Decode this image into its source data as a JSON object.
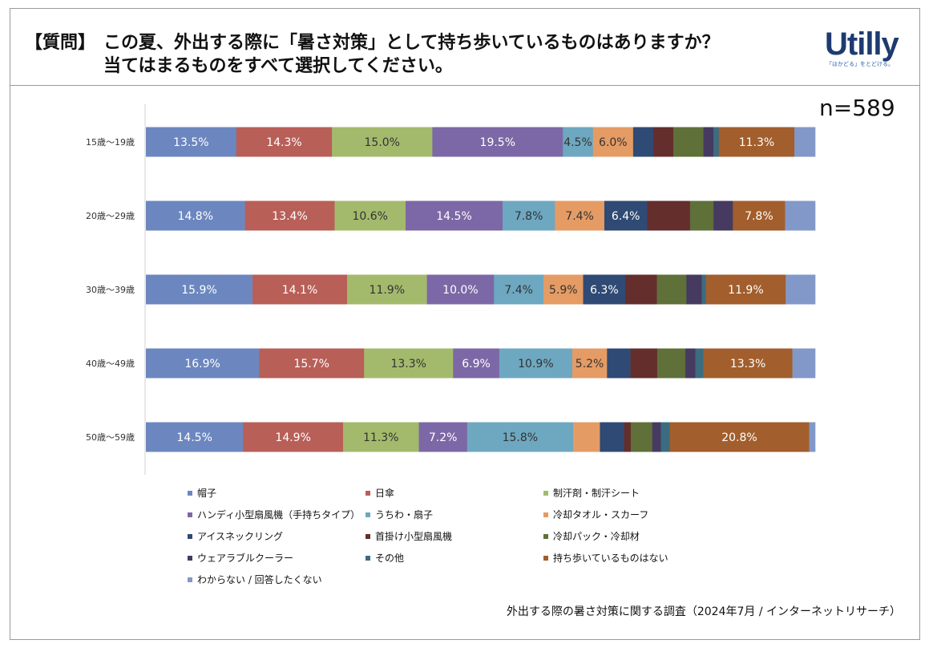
{
  "header": {
    "question_label": "【質問】",
    "question_line1": "この夏、外出する際に「暑さ対策」として持ち歩いているものはありますか？",
    "question_line2": "当てはまるものをすべて選択してください。",
    "logo_text": "Utilly",
    "logo_tagline": "「はかどる」をとどける。"
  },
  "sample_size": "n=589",
  "source_note": "外出する際の暑さ対策に関する調査（2024年7月 / インターネットリサーチ）",
  "chart_data": {
    "type": "bar",
    "orientation": "horizontal-stacked-100",
    "categories": [
      "15歳〜19歳",
      "20歳〜29歳",
      "30歳〜39歳",
      "40歳〜49歳",
      "50歳〜59歳"
    ],
    "series": [
      {
        "name": "帽子",
        "color": "#6c87bf",
        "values": [
          13.5,
          14.8,
          15.9,
          16.9,
          14.5
        ]
      },
      {
        "name": "日傘",
        "color": "#b85f58",
        "values": [
          14.3,
          13.4,
          14.1,
          15.7,
          14.9
        ]
      },
      {
        "name": "制汗剤・制汗シート",
        "color": "#a3ba6c",
        "values": [
          15.0,
          10.6,
          11.9,
          13.3,
          11.3
        ]
      },
      {
        "name": "ハンディ小型扇風機（手持ちタイプ）",
        "color": "#7c68a6",
        "values": [
          19.5,
          14.5,
          10.0,
          6.9,
          7.2
        ]
      },
      {
        "name": "うちわ・扇子",
        "color": "#6ea7c0",
        "values": [
          4.5,
          7.8,
          7.4,
          10.9,
          15.8
        ]
      },
      {
        "name": "冷却タオル・スカーフ",
        "color": "#e59b64",
        "values": [
          6.0,
          7.4,
          5.9,
          5.2,
          4.0
        ]
      },
      {
        "name": "アイスネックリング",
        "color": "#2f4a74",
        "values": [
          3.0,
          6.4,
          6.3,
          3.5,
          3.6
        ]
      },
      {
        "name": "首掛け小型扇風機",
        "color": "#642e2d",
        "values": [
          3.0,
          6.4,
          4.7,
          4.0,
          1.0
        ]
      },
      {
        "name": "冷却パック・冷却材",
        "color": "#5f7039",
        "values": [
          4.5,
          3.5,
          4.4,
          4.2,
          3.2
        ]
      },
      {
        "name": "ウェアラブルクーラー",
        "color": "#463a60",
        "values": [
          1.5,
          2.9,
          2.3,
          1.5,
          1.3
        ]
      },
      {
        "name": "その他",
        "color": "#3b6c80",
        "values": [
          0.8,
          0.0,
          0.6,
          1.2,
          1.3
        ]
      },
      {
        "name": "持ち歩いているものはない",
        "color": "#a25e2c",
        "values": [
          11.3,
          7.8,
          11.9,
          13.3,
          20.8
        ]
      },
      {
        "name": "わからない / 回答したくない",
        "color": "#8298c8",
        "values": [
          3.1,
          4.5,
          4.4,
          3.4,
          0.9
        ]
      }
    ],
    "data_labels": [
      [
        "13.5%",
        "14.3%",
        "15.0%",
        "19.5%",
        "4.5%",
        "6.0%",
        "",
        "",
        "",
        "",
        "",
        "11.3%",
        ""
      ],
      [
        "14.8%",
        "13.4%",
        "10.6%",
        "14.5%",
        "7.8%",
        "7.4%",
        "6.4%",
        "",
        "",
        "",
        "",
        "7.8%",
        ""
      ],
      [
        "15.9%",
        "14.1%",
        "11.9%",
        "10.0%",
        "7.4%",
        "5.9%",
        "6.3%",
        "",
        "",
        "",
        "",
        "11.9%",
        ""
      ],
      [
        "16.9%",
        "15.7%",
        "13.3%",
        "6.9%",
        "10.9%",
        "5.2%",
        "",
        "",
        "",
        "",
        "",
        "13.3%",
        ""
      ],
      [
        "14.5%",
        "14.9%",
        "11.3%",
        "7.2%",
        "15.8%",
        "",
        "",
        "",
        "",
        "",
        "",
        "20.8%",
        ""
      ]
    ],
    "xlim": [
      0,
      100
    ],
    "grid": false,
    "legend_position": "bottom"
  }
}
